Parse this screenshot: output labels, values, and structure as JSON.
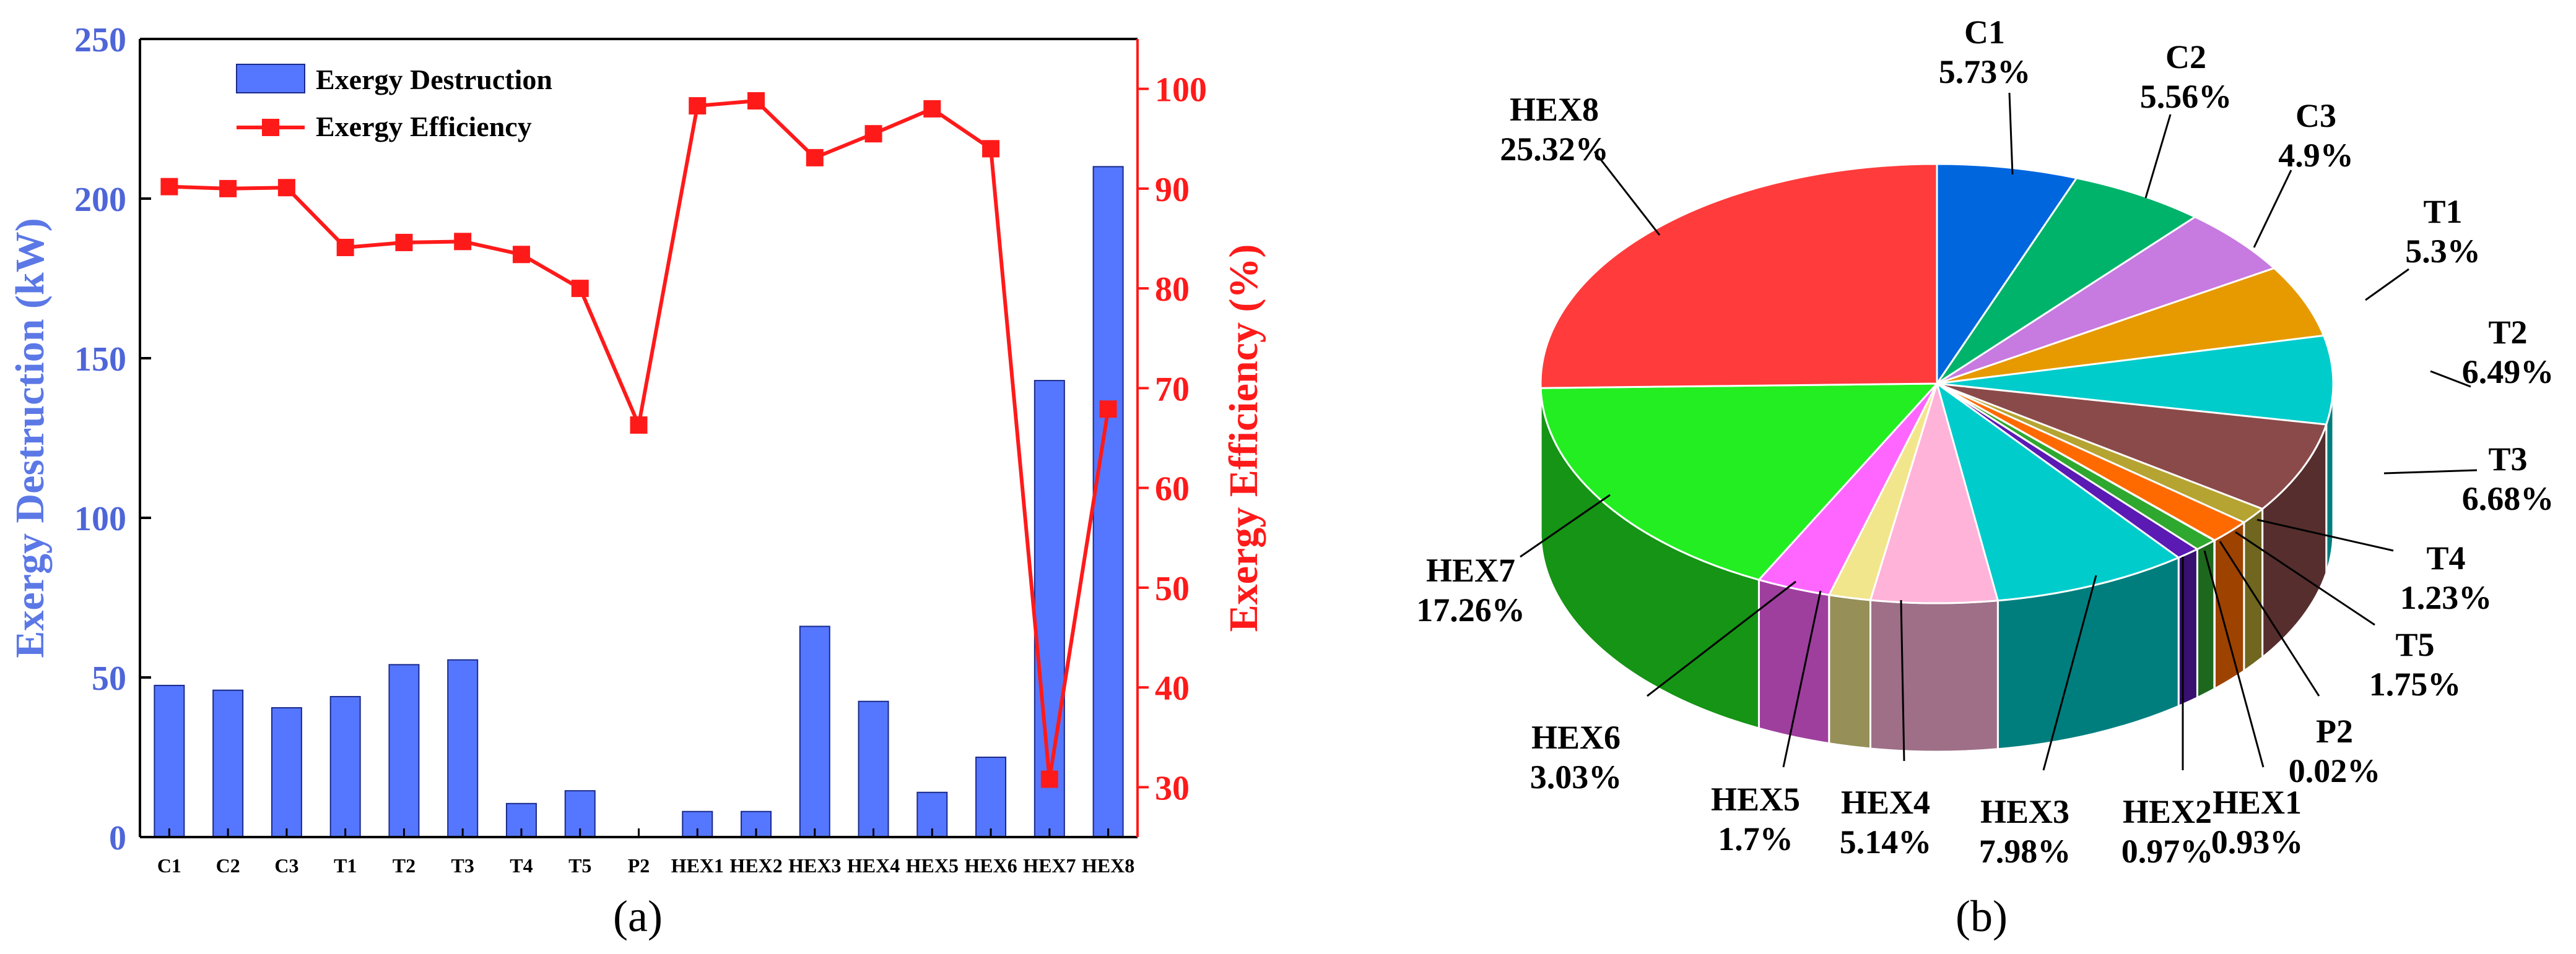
{
  "chart_data": [
    {
      "type": "bar+line",
      "panel_label": "(a)",
      "categories": [
        "C1",
        "C2",
        "C3",
        "T1",
        "T2",
        "T3",
        "T4",
        "T5",
        "P2",
        "HEX1",
        "HEX2",
        "HEX3",
        "HEX4",
        "HEX5",
        "HEX6",
        "HEX7",
        "HEX8"
      ],
      "series": [
        {
          "name": "Exergy Destruction",
          "type": "bar",
          "axis": "left",
          "color": "#5577ff",
          "values": [
            47.5,
            46.0,
            40.5,
            44.0,
            54.0,
            55.5,
            10.5,
            14.5,
            0.05,
            8.0,
            8.0,
            66.0,
            42.5,
            14.0,
            25.0,
            143.0,
            210.0
          ]
        },
        {
          "name": "Exergy Efficiency",
          "type": "line",
          "axis": "right",
          "color": "#ff1a1a",
          "values": [
            90.2,
            90.0,
            90.1,
            84.1,
            84.6,
            84.7,
            83.4,
            80.0,
            66.3,
            98.3,
            98.8,
            93.1,
            95.5,
            98.0,
            94.0,
            30.8,
            67.9
          ]
        }
      ],
      "yleft": {
        "label": "Exergy Destruction (kW)",
        "min": 0,
        "max": 250,
        "ticks": [
          0,
          50,
          100,
          150,
          200,
          250
        ],
        "color": "#4f66d8"
      },
      "yright": {
        "label": "Exergy Efficiency (%)",
        "min": 25,
        "max": 105,
        "ticks": [
          30,
          40,
          50,
          60,
          70,
          80,
          90,
          100
        ],
        "color": "#ff1a1a"
      },
      "legend_position": "top-left"
    },
    {
      "type": "pie",
      "panel_label": "(b)",
      "slices": [
        {
          "label": "C1",
          "pct_text": "5.73%",
          "value": 5.73,
          "color": "#0066dd"
        },
        {
          "label": "C2",
          "pct_text": "5.56%",
          "value": 5.56,
          "color": "#00b36b"
        },
        {
          "label": "C3",
          "pct_text": "4.9%",
          "value": 4.9,
          "color": "#c77ae0"
        },
        {
          "label": "T1",
          "pct_text": "5.3%",
          "value": 5.3,
          "color": "#e69a00"
        },
        {
          "label": "T2",
          "pct_text": "6.49%",
          "value": 6.49,
          "color": "#00cccc"
        },
        {
          "label": "T3",
          "pct_text": "6.68%",
          "value": 6.68,
          "color": "#8b4a4a"
        },
        {
          "label": "T4",
          "pct_text": "1.23%",
          "value": 1.23,
          "color": "#b5a432"
        },
        {
          "label": "T5",
          "pct_text": "1.75%",
          "value": 1.75,
          "color": "#ff6a00"
        },
        {
          "label": "P2",
          "pct_text": "0.02%",
          "value": 0.02,
          "color": "#333333"
        },
        {
          "label": "HEX1",
          "pct_text": "0.93%",
          "value": 0.93,
          "color": "#2fa82f"
        },
        {
          "label": "HEX2",
          "pct_text": "0.97%",
          "value": 0.97,
          "color": "#5a1ab3"
        },
        {
          "label": "HEX3",
          "pct_text": "7.98%",
          "value": 7.98,
          "color": "#00cccc"
        },
        {
          "label": "HEX4",
          "pct_text": "5.14%",
          "value": 5.14,
          "color": "#ffb3d9"
        },
        {
          "label": "HEX5",
          "pct_text": "1.7%",
          "value": 1.7,
          "color": "#f2e68c"
        },
        {
          "label": "HEX6",
          "pct_text": "3.03%",
          "value": 3.03,
          "color": "#ff66ff"
        },
        {
          "label": "HEX7",
          "pct_text": "17.26%",
          "value": 17.26,
          "color": "#22ee22"
        },
        {
          "label": "HEX8",
          "pct_text": "25.32%",
          "value": 25.32,
          "color": "#ff3b3b"
        }
      ]
    }
  ]
}
